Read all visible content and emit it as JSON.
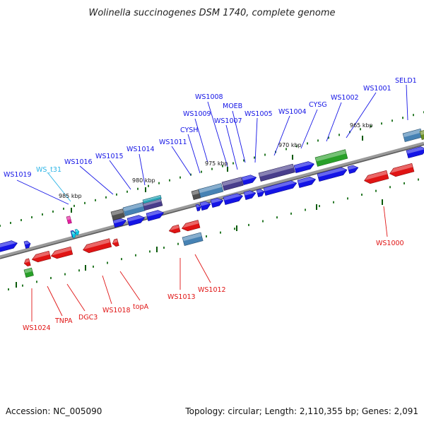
{
  "title": "Wolinella succinogenes DSM 1740, complete genome",
  "accession": "Accession: NC_005090",
  "topology": "Topology: circular; Length: 2,110,355 bp; Genes: 2,091",
  "scale_labels": [
    "985 kbp",
    "980 kbp",
    "975 kbp",
    "970 kbp",
    "965 kbp"
  ],
  "colors": {
    "forward": "#1414e6",
    "reverse": "#e01414",
    "trna": "#00c8e6",
    "rrna": "#e61ea0",
    "green": "#28a028",
    "steel": "#4682b4",
    "slate": "#483d8b",
    "grey": "#505050",
    "backbone": "#7a7a7a",
    "tick": "#2a7a2a"
  },
  "gene_labels_forward": [
    "WS1019",
    "WS_t31",
    "WS1016",
    "WS1015",
    "WS1014",
    "WS1011",
    "CYSH",
    "WS1009",
    "WS1008",
    "WS1007",
    "MOEB",
    "WS1005",
    "WS1004",
    "CYSG",
    "WS1002",
    "WS1001",
    "SELD1"
  ],
  "gene_labels_reverse": [
    "WS1024",
    "TNPA",
    "DGC3",
    "WS1018",
    "topA",
    "WS1013",
    "WS1012",
    "WS1000"
  ]
}
